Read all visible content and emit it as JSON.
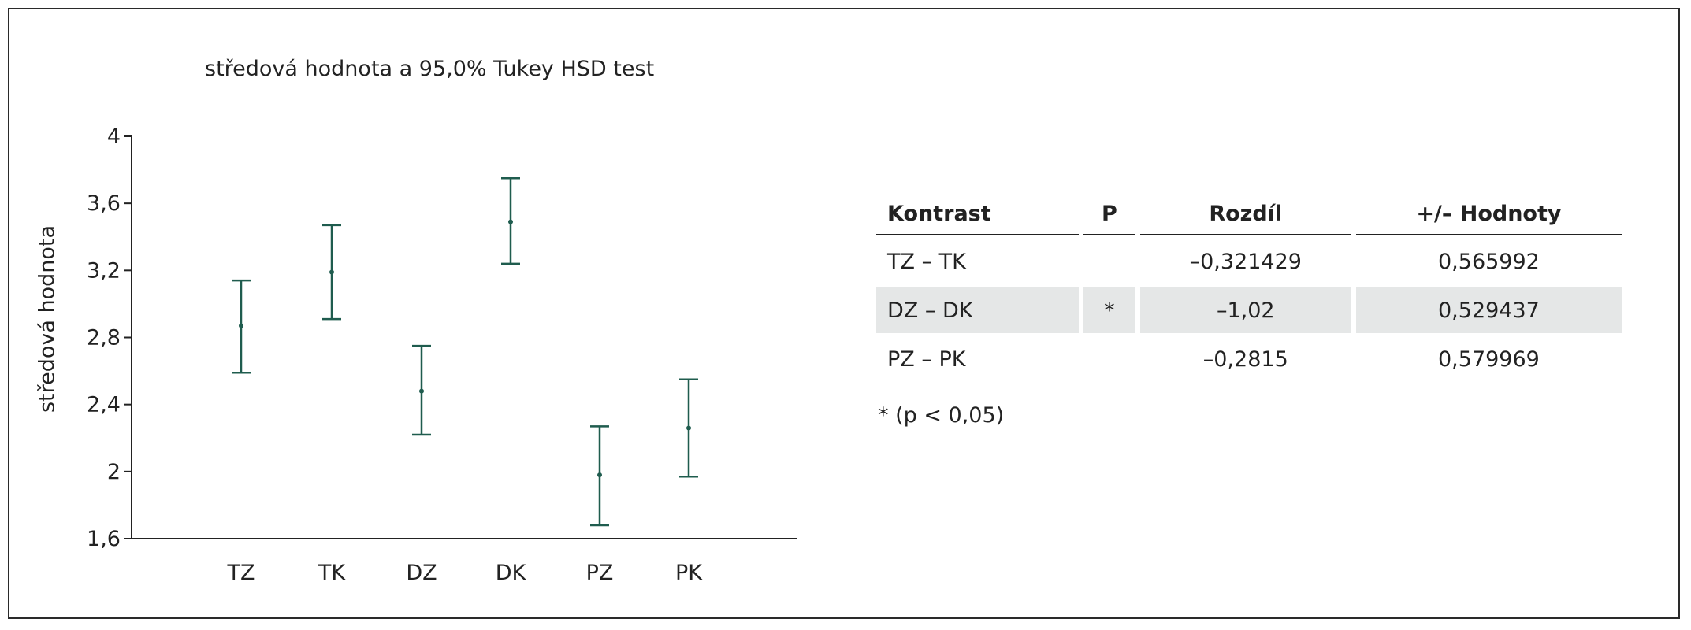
{
  "chart_data": {
    "type": "scatter",
    "title": "středová hodnota a 95,0% Tukey HSD test",
    "xlabel": "",
    "ylabel": "středová hodnota",
    "categories": [
      "TZ",
      "TK",
      "DZ",
      "DK",
      "PZ",
      "PK"
    ],
    "ylim": [
      1.6,
      4.0
    ],
    "yticks": [
      "4",
      "3,6",
      "3,2",
      "2,8",
      "2,4",
      "2",
      "1,6"
    ],
    "ytick_values": [
      4.0,
      3.6,
      3.2,
      2.8,
      2.4,
      2.0,
      1.6
    ],
    "series": [
      {
        "mean": [
          2.87,
          3.19,
          2.48,
          3.49,
          1.98,
          2.26
        ],
        "lower": [
          2.59,
          2.91,
          2.22,
          3.24,
          1.68,
          1.97
        ],
        "upper": [
          3.14,
          3.47,
          2.75,
          3.75,
          2.27,
          2.55
        ]
      }
    ],
    "grid": false,
    "marker_color": "#1f5c4e"
  },
  "table": {
    "headers": [
      "Kontrast",
      "P",
      "Rozdíl",
      "+/– Hodnoty"
    ],
    "rows": [
      {
        "kontrast": "TZ – TK",
        "p": "",
        "rozdil": "–0,321429",
        "hodnoty": "0,565992",
        "shaded": false
      },
      {
        "kontrast": "DZ – DK",
        "p": "*",
        "rozdil": "–1,02",
        "hodnoty": "0,529437",
        "shaded": true
      },
      {
        "kontrast": "PZ – PK",
        "p": "",
        "rozdil": "–0,2815",
        "hodnoty": "0,579969",
        "shaded": false
      }
    ],
    "footnote": "* (p < 0,05)",
    "row_shade_color": "#e5e7e7"
  }
}
